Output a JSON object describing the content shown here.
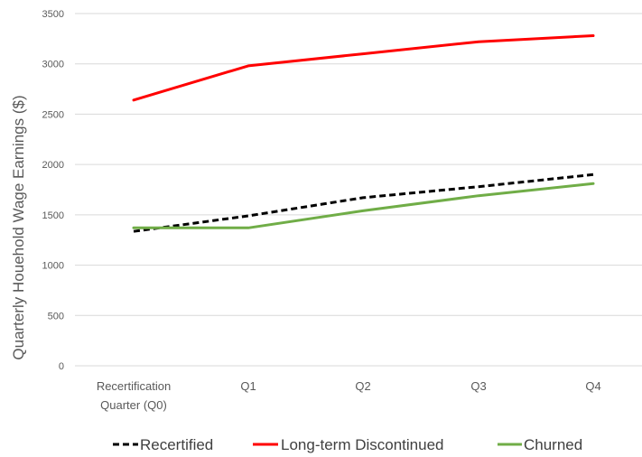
{
  "chart_data": {
    "type": "line",
    "title": "",
    "xlabel": "",
    "ylabel": "Quarterly Houehold Wage Earnings ($)",
    "categories": [
      [
        "Recertification",
        "Quarter (Q0)"
      ],
      [
        "Q1"
      ],
      [
        "Q2"
      ],
      [
        "Q3"
      ],
      [
        "Q4"
      ]
    ],
    "ylim": [
      0,
      3500
    ],
    "yticks": [
      0,
      500,
      1000,
      1500,
      2000,
      2500,
      3000,
      3500
    ],
    "grid": true,
    "legend_position": "bottom",
    "series": [
      {
        "name": "Recertified",
        "values": [
          1335,
          1490,
          1670,
          1780,
          1900
        ],
        "color": "#000000",
        "dashed": true
      },
      {
        "name": "Long-term Discontinued",
        "values": [
          2640,
          2980,
          3100,
          3220,
          3280
        ],
        "color": "#ff0000",
        "dashed": false
      },
      {
        "name": "Churned",
        "values": [
          1370,
          1370,
          1540,
          1690,
          1810
        ],
        "color": "#70ad47",
        "dashed": false
      }
    ]
  }
}
